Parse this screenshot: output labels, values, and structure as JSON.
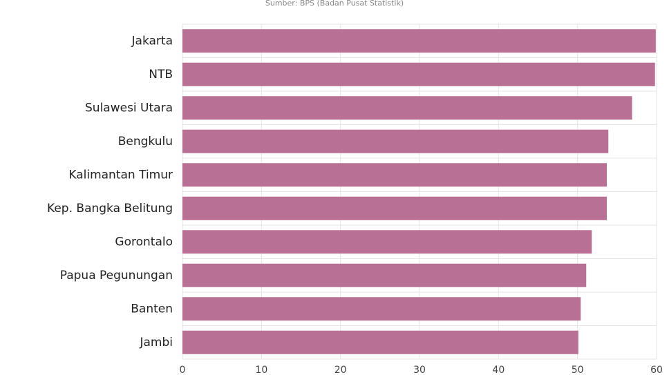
{
  "chart_data": {
    "type": "bar",
    "orientation": "horizontal",
    "subtitle": "Sumber: BPS (Badan Pusat Statistik)",
    "categories": [
      "Jakarta",
      "NTB",
      "Sulawesi Utara",
      "Bengkulu",
      "Kalimantan Timur",
      "Kep. Bangka Belitung",
      "Gorontalo",
      "Papua Pegunungan",
      "Banten",
      "Jambi"
    ],
    "values": [
      59.9,
      59.8,
      56.9,
      53.9,
      53.7,
      53.7,
      51.8,
      51.1,
      50.4,
      50.1
    ],
    "color": "#b87094",
    "xlim": [
      0,
      60
    ],
    "xticks": [
      0,
      10,
      20,
      30,
      40,
      50,
      60
    ],
    "grid": true
  }
}
